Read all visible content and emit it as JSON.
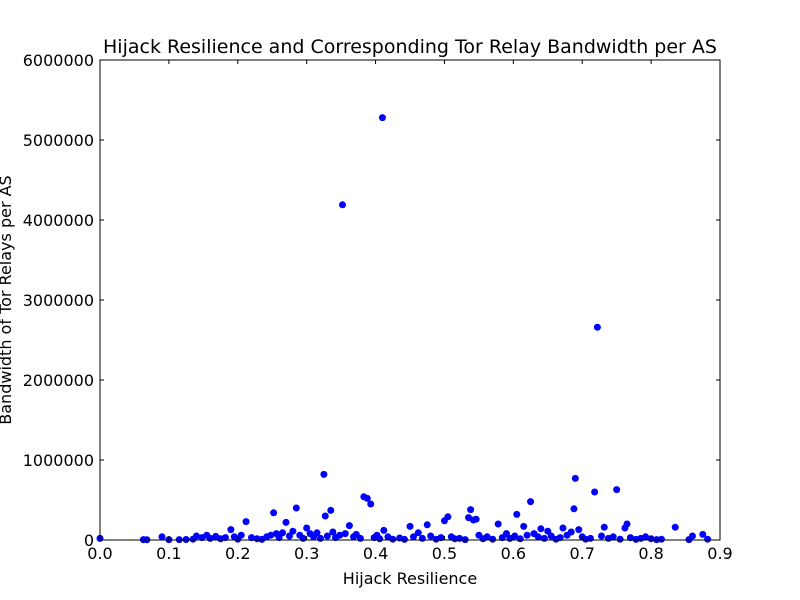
{
  "chart_data": {
    "type": "scatter",
    "title": "Hijack Resilience and Corresponding Tor Relay Bandwidth per AS",
    "xlabel": "Hijack Resilience",
    "ylabel": "Bandwidth of Tor Relays per AS",
    "xlim": [
      0.0,
      0.9
    ],
    "ylim": [
      0,
      6000000
    ],
    "xticks": [
      "0.0",
      "0.1",
      "0.2",
      "0.3",
      "0.4",
      "0.5",
      "0.6",
      "0.7",
      "0.8",
      "0.9"
    ],
    "yticks": [
      "0",
      "1000000",
      "2000000",
      "3000000",
      "4000000",
      "5000000",
      "6000000"
    ],
    "grid": false,
    "marker_color": "#0000ff",
    "points": [
      {
        "x": 0.0,
        "y": 20000
      },
      {
        "x": 0.063,
        "y": 5000
      },
      {
        "x": 0.068,
        "y": 3000
      },
      {
        "x": 0.09,
        "y": 40000
      },
      {
        "x": 0.1,
        "y": 5000
      },
      {
        "x": 0.115,
        "y": 4000
      },
      {
        "x": 0.125,
        "y": 6000
      },
      {
        "x": 0.135,
        "y": 10000
      },
      {
        "x": 0.14,
        "y": 50000
      },
      {
        "x": 0.148,
        "y": 30000
      },
      {
        "x": 0.155,
        "y": 60000
      },
      {
        "x": 0.16,
        "y": 20000
      },
      {
        "x": 0.168,
        "y": 45000
      },
      {
        "x": 0.175,
        "y": 15000
      },
      {
        "x": 0.182,
        "y": 30000
      },
      {
        "x": 0.19,
        "y": 130000
      },
      {
        "x": 0.195,
        "y": 40000
      },
      {
        "x": 0.2,
        "y": 10000
      },
      {
        "x": 0.205,
        "y": 60000
      },
      {
        "x": 0.212,
        "y": 230000
      },
      {
        "x": 0.22,
        "y": 30000
      },
      {
        "x": 0.228,
        "y": 15000
      },
      {
        "x": 0.235,
        "y": 8000
      },
      {
        "x": 0.242,
        "y": 40000
      },
      {
        "x": 0.248,
        "y": 60000
      },
      {
        "x": 0.252,
        "y": 340000
      },
      {
        "x": 0.256,
        "y": 80000
      },
      {
        "x": 0.26,
        "y": 30000
      },
      {
        "x": 0.265,
        "y": 90000
      },
      {
        "x": 0.27,
        "y": 220000
      },
      {
        "x": 0.275,
        "y": 50000
      },
      {
        "x": 0.28,
        "y": 110000
      },
      {
        "x": 0.285,
        "y": 400000
      },
      {
        "x": 0.29,
        "y": 60000
      },
      {
        "x": 0.295,
        "y": 20000
      },
      {
        "x": 0.3,
        "y": 150000
      },
      {
        "x": 0.305,
        "y": 80000
      },
      {
        "x": 0.31,
        "y": 40000
      },
      {
        "x": 0.315,
        "y": 90000
      },
      {
        "x": 0.32,
        "y": 20000
      },
      {
        "x": 0.325,
        "y": 820000
      },
      {
        "x": 0.327,
        "y": 300000
      },
      {
        "x": 0.33,
        "y": 50000
      },
      {
        "x": 0.335,
        "y": 370000
      },
      {
        "x": 0.338,
        "y": 100000
      },
      {
        "x": 0.342,
        "y": 30000
      },
      {
        "x": 0.348,
        "y": 60000
      },
      {
        "x": 0.352,
        "y": 4190000
      },
      {
        "x": 0.356,
        "y": 80000
      },
      {
        "x": 0.362,
        "y": 180000
      },
      {
        "x": 0.368,
        "y": 40000
      },
      {
        "x": 0.372,
        "y": 70000
      },
      {
        "x": 0.378,
        "y": 20000
      },
      {
        "x": 0.383,
        "y": 540000
      },
      {
        "x": 0.388,
        "y": 520000
      },
      {
        "x": 0.393,
        "y": 450000
      },
      {
        "x": 0.398,
        "y": 30000
      },
      {
        "x": 0.402,
        "y": 60000
      },
      {
        "x": 0.406,
        "y": 15000
      },
      {
        "x": 0.41,
        "y": 5280000
      },
      {
        "x": 0.412,
        "y": 120000
      },
      {
        "x": 0.418,
        "y": 40000
      },
      {
        "x": 0.425,
        "y": 10000
      },
      {
        "x": 0.435,
        "y": 25000
      },
      {
        "x": 0.442,
        "y": 8000
      },
      {
        "x": 0.45,
        "y": 170000
      },
      {
        "x": 0.455,
        "y": 40000
      },
      {
        "x": 0.462,
        "y": 90000
      },
      {
        "x": 0.468,
        "y": 20000
      },
      {
        "x": 0.475,
        "y": 190000
      },
      {
        "x": 0.48,
        "y": 50000
      },
      {
        "x": 0.488,
        "y": 10000
      },
      {
        "x": 0.495,
        "y": 30000
      },
      {
        "x": 0.5,
        "y": 240000
      },
      {
        "x": 0.505,
        "y": 290000
      },
      {
        "x": 0.51,
        "y": 40000
      },
      {
        "x": 0.515,
        "y": 15000
      },
      {
        "x": 0.522,
        "y": 20000
      },
      {
        "x": 0.53,
        "y": 5000
      },
      {
        "x": 0.535,
        "y": 280000
      },
      {
        "x": 0.538,
        "y": 380000
      },
      {
        "x": 0.542,
        "y": 250000
      },
      {
        "x": 0.546,
        "y": 260000
      },
      {
        "x": 0.55,
        "y": 60000
      },
      {
        "x": 0.556,
        "y": 15000
      },
      {
        "x": 0.562,
        "y": 40000
      },
      {
        "x": 0.57,
        "y": 10000
      },
      {
        "x": 0.578,
        "y": 200000
      },
      {
        "x": 0.584,
        "y": 30000
      },
      {
        "x": 0.59,
        "y": 80000
      },
      {
        "x": 0.595,
        "y": 20000
      },
      {
        "x": 0.602,
        "y": 50000
      },
      {
        "x": 0.605,
        "y": 320000
      },
      {
        "x": 0.61,
        "y": 15000
      },
      {
        "x": 0.615,
        "y": 170000
      },
      {
        "x": 0.62,
        "y": 60000
      },
      {
        "x": 0.625,
        "y": 480000
      },
      {
        "x": 0.63,
        "y": 80000
      },
      {
        "x": 0.636,
        "y": 40000
      },
      {
        "x": 0.64,
        "y": 140000
      },
      {
        "x": 0.645,
        "y": 20000
      },
      {
        "x": 0.65,
        "y": 110000
      },
      {
        "x": 0.655,
        "y": 50000
      },
      {
        "x": 0.662,
        "y": 10000
      },
      {
        "x": 0.668,
        "y": 30000
      },
      {
        "x": 0.672,
        "y": 150000
      },
      {
        "x": 0.678,
        "y": 60000
      },
      {
        "x": 0.684,
        "y": 100000
      },
      {
        "x": 0.688,
        "y": 390000
      },
      {
        "x": 0.69,
        "y": 770000
      },
      {
        "x": 0.695,
        "y": 130000
      },
      {
        "x": 0.7,
        "y": 40000
      },
      {
        "x": 0.705,
        "y": 10000
      },
      {
        "x": 0.712,
        "y": 20000
      },
      {
        "x": 0.718,
        "y": 600000
      },
      {
        "x": 0.722,
        "y": 2660000
      },
      {
        "x": 0.728,
        "y": 50000
      },
      {
        "x": 0.732,
        "y": 160000
      },
      {
        "x": 0.738,
        "y": 20000
      },
      {
        "x": 0.745,
        "y": 40000
      },
      {
        "x": 0.75,
        "y": 630000
      },
      {
        "x": 0.755,
        "y": 10000
      },
      {
        "x": 0.762,
        "y": 150000
      },
      {
        "x": 0.765,
        "y": 200000
      },
      {
        "x": 0.77,
        "y": 30000
      },
      {
        "x": 0.778,
        "y": 8000
      },
      {
        "x": 0.785,
        "y": 20000
      },
      {
        "x": 0.792,
        "y": 40000
      },
      {
        "x": 0.8,
        "y": 15000
      },
      {
        "x": 0.808,
        "y": 5000
      },
      {
        "x": 0.815,
        "y": 10000
      },
      {
        "x": 0.835,
        "y": 160000
      },
      {
        "x": 0.855,
        "y": 5000
      },
      {
        "x": 0.86,
        "y": 50000
      },
      {
        "x": 0.875,
        "y": 70000
      },
      {
        "x": 0.882,
        "y": 10000
      }
    ]
  }
}
